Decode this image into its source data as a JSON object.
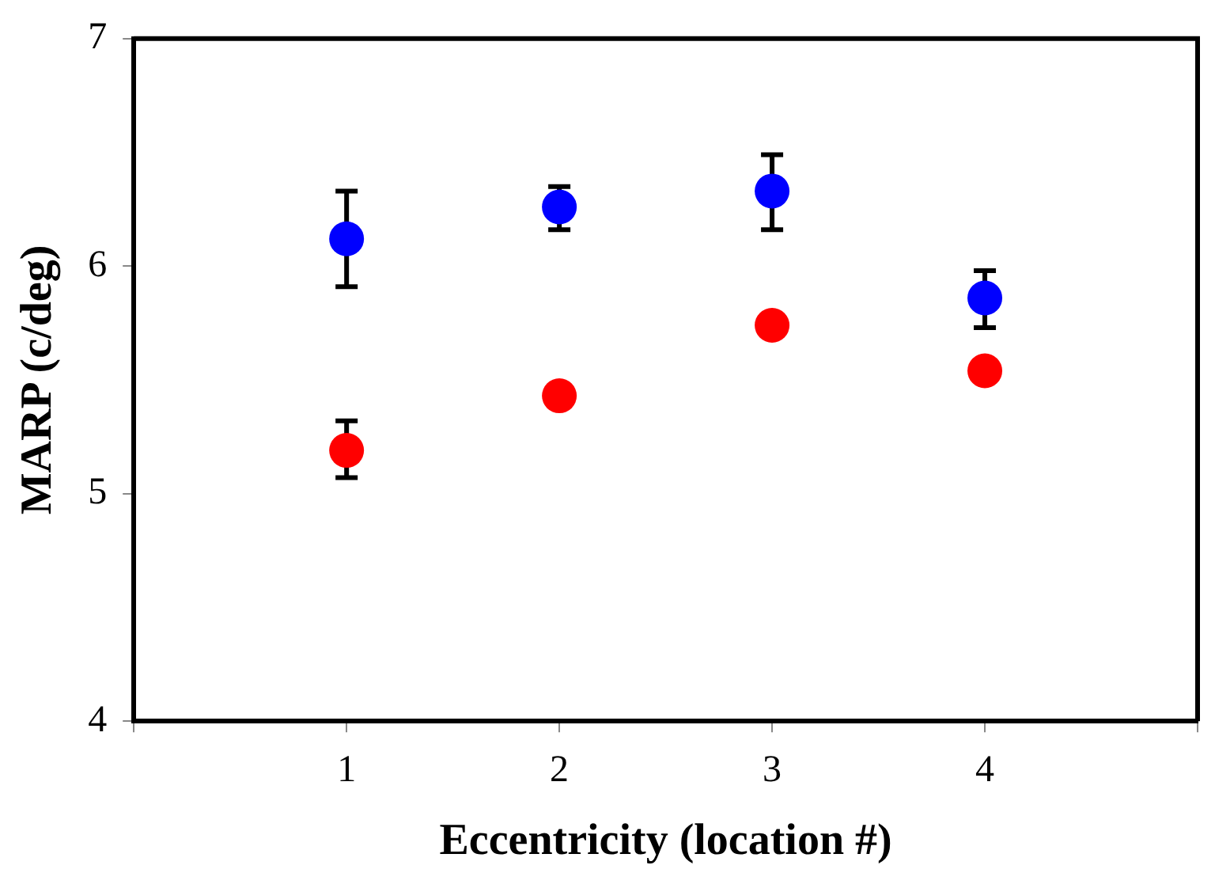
{
  "chart_data": {
    "type": "scatter",
    "xlabel": "Eccentricity (location #)",
    "ylabel": "MARP (c/deg)",
    "x": [
      1,
      2,
      3,
      4
    ],
    "series": [
      {
        "color": "#0000ff",
        "values": [
          6.12,
          6.26,
          6.33,
          5.86
        ],
        "errors": [
          [
            5.91,
            6.33
          ],
          [
            6.16,
            6.35
          ],
          [
            6.16,
            6.49
          ],
          [
            5.73,
            5.98
          ]
        ]
      },
      {
        "color": "#ff0000",
        "values": [
          5.19,
          5.43,
          5.74,
          5.54
        ],
        "errors": [
          [
            5.07,
            5.32
          ],
          null,
          null,
          null
        ]
      }
    ],
    "xlim": [
      0,
      5
    ],
    "xticks": [
      {
        "value": 0,
        "label": null
      },
      1,
      2,
      3,
      4,
      {
        "value": 5,
        "label": null
      }
    ],
    "ylim": [
      4,
      7
    ],
    "yticks": [
      4,
      5,
      6,
      7
    ],
    "grid": false,
    "legend": false,
    "marker": "circle"
  }
}
